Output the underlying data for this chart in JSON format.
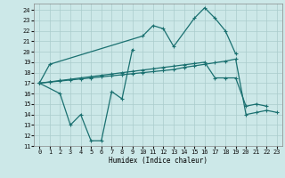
{
  "xlabel": "Humidex (Indice chaleur)",
  "bg_color": "#cce8e8",
  "grid_color": "#aacccc",
  "line_color": "#1a7070",
  "xlim": [
    -0.5,
    23.5
  ],
  "ylim": [
    11,
    24.6
  ],
  "yticks": [
    11,
    12,
    13,
    14,
    15,
    16,
    17,
    18,
    19,
    20,
    21,
    22,
    23,
    24
  ],
  "xticks": [
    0,
    1,
    2,
    3,
    4,
    5,
    6,
    7,
    8,
    9,
    10,
    11,
    12,
    13,
    14,
    15,
    16,
    17,
    18,
    19,
    20,
    21,
    22,
    23
  ],
  "line1_x": [
    0,
    1,
    10,
    11,
    12,
    13,
    15,
    16,
    17,
    18,
    19
  ],
  "line1_y": [
    17.0,
    18.8,
    21.5,
    22.5,
    22.2,
    20.5,
    23.2,
    24.2,
    23.2,
    22.0,
    19.8
  ],
  "line2_x": [
    0,
    2,
    3,
    4,
    5,
    6,
    7,
    8,
    9
  ],
  "line2_y": [
    17.0,
    16.0,
    13.0,
    14.0,
    11.5,
    11.5,
    16.2,
    15.5,
    20.2
  ],
  "line3_x": [
    0,
    1,
    2,
    3,
    4,
    5,
    6,
    7,
    8,
    9,
    10,
    11,
    12,
    13,
    14,
    15,
    16,
    17,
    18,
    19,
    20,
    21,
    22
  ],
  "line3_y": [
    17.0,
    17.12,
    17.25,
    17.37,
    17.5,
    17.62,
    17.75,
    17.87,
    18.0,
    18.12,
    18.25,
    18.37,
    18.5,
    18.62,
    18.75,
    18.87,
    19.0,
    17.5,
    17.5,
    17.5,
    14.8,
    15.0,
    14.8
  ],
  "line4_x": [
    0,
    1,
    2,
    3,
    4,
    5,
    6,
    7,
    8,
    9,
    10,
    11,
    12,
    13,
    14,
    15,
    16,
    17,
    18,
    19,
    20,
    21,
    22,
    23
  ],
  "line4_y": [
    17.0,
    17.1,
    17.2,
    17.3,
    17.4,
    17.5,
    17.6,
    17.7,
    17.8,
    17.9,
    18.0,
    18.1,
    18.2,
    18.3,
    18.5,
    18.65,
    18.8,
    18.95,
    19.1,
    19.3,
    14.0,
    14.2,
    14.4,
    14.2
  ]
}
